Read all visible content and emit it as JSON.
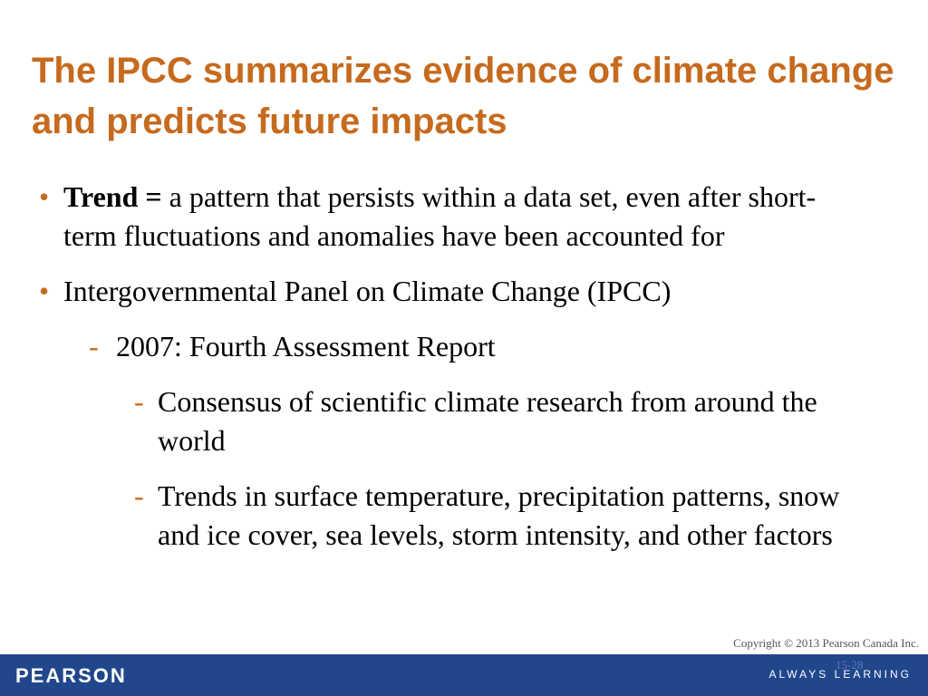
{
  "slide": {
    "title": "The IPCC summarizes evidence of climate change and predicts future impacts",
    "bullets": [
      {
        "term": "Trend",
        "separator": " = ",
        "text": "a pattern that persists within a data set, even after short-term fluctuations and anomalies have been accounted for"
      },
      {
        "text": "Intergovernmental Panel on Climate Change (IPCC)",
        "sub": [
          {
            "text": "2007: Fourth Assessment Report",
            "sub": [
              {
                "text": "Consensus of scientific climate research from around the world"
              },
              {
                "text": "Trends in surface temperature, precipitation patterns, snow and ice cover, sea levels, storm intensity, and other factors"
              }
            ]
          }
        ]
      }
    ],
    "bullet_glyph": "•",
    "dash_glyph": "-"
  },
  "footer": {
    "copyright": "Copyright © 2013 Pearson Canada Inc.",
    "slide_number": "15-28",
    "brand": "PEARSON",
    "tagline": "ALWAYS LEARNING"
  },
  "colors": {
    "title": "#C66A1E",
    "accent": "#C66A1E",
    "footer_bar": "#21468B",
    "text": "#000000"
  }
}
